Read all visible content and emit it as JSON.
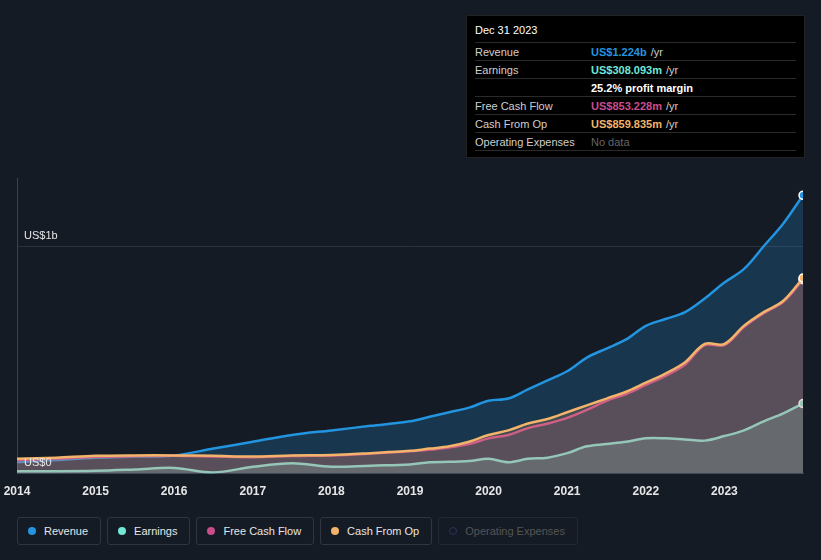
{
  "chart_data": {
    "type": "line",
    "x": [
      2014,
      2014.5,
      2015,
      2015.5,
      2016,
      2016.5,
      2017,
      2017.5,
      2018,
      2018.5,
      2019,
      2019.25,
      2019.5,
      2019.75,
      2020,
      2020.25,
      2020.5,
      2020.75,
      2021,
      2021.25,
      2021.5,
      2021.75,
      2022,
      2022.25,
      2022.5,
      2022.75,
      2023,
      2023.25,
      2023.5,
      2023.75,
      2024
    ],
    "series": [
      {
        "name": "Revenue",
        "color": "#2394df",
        "values": [
          0.05,
          0.06,
          0.07,
          0.075,
          0.08,
          0.11,
          0.14,
          0.17,
          0.19,
          0.21,
          0.23,
          0.25,
          0.27,
          0.29,
          0.32,
          0.33,
          0.37,
          0.41,
          0.45,
          0.51,
          0.55,
          0.59,
          0.65,
          0.68,
          0.71,
          0.77,
          0.84,
          0.9,
          1.0,
          1.1,
          1.224
        ]
      },
      {
        "name": "Earnings",
        "color": "#71e7d6",
        "values": [
          0.01,
          0.01,
          0.012,
          0.018,
          0.025,
          0.005,
          0.03,
          0.045,
          0.03,
          0.035,
          0.04,
          0.05,
          0.052,
          0.055,
          0.065,
          0.05,
          0.065,
          0.07,
          0.09,
          0.12,
          0.13,
          0.14,
          0.155,
          0.155,
          0.15,
          0.145,
          0.165,
          0.19,
          0.23,
          0.265,
          0.308
        ]
      },
      {
        "name": "Free Cash Flow",
        "color": "#c94d8b",
        "values": [
          0.06,
          0.066,
          0.074,
          0.077,
          0.078,
          0.075,
          0.072,
          0.077,
          0.08,
          0.088,
          0.098,
          0.105,
          0.115,
          0.13,
          0.155,
          0.17,
          0.2,
          0.22,
          0.245,
          0.28,
          0.32,
          0.35,
          0.39,
          0.43,
          0.48,
          0.565,
          0.565,
          0.645,
          0.705,
          0.755,
          0.853
        ]
      },
      {
        "name": "Cash From Op",
        "color": "#f2b36a",
        "values": [
          0.065,
          0.07,
          0.078,
          0.08,
          0.08,
          0.078,
          0.075,
          0.08,
          0.082,
          0.09,
          0.1,
          0.11,
          0.12,
          0.14,
          0.17,
          0.19,
          0.22,
          0.24,
          0.27,
          0.3,
          0.33,
          0.36,
          0.4,
          0.44,
          0.49,
          0.57,
          0.57,
          0.65,
          0.71,
          0.76,
          0.86
        ]
      },
      {
        "name": "Operating Expenses",
        "color": "#2f3160",
        "values": [
          null,
          null,
          null,
          null,
          null,
          null,
          null,
          null,
          null,
          null,
          null,
          null,
          null,
          null,
          null,
          null,
          null,
          null,
          null,
          null,
          null,
          null,
          null,
          null,
          null,
          null,
          null,
          null,
          null,
          null,
          null
        ]
      }
    ],
    "xlim": [
      2014,
      2024
    ],
    "xticks": [
      2014,
      2015,
      2016,
      2017,
      2018,
      2019,
      2020,
      2021,
      2022,
      2023
    ],
    "ylim": [
      0,
      1.3
    ],
    "yticks": [
      {
        "value": 0,
        "label": "US$0"
      },
      {
        "value": 1,
        "label": "US$1b"
      }
    ],
    "grid": true,
    "legend": "bottom"
  },
  "info_box": {
    "date": "Dec 31 2023",
    "rows": [
      {
        "label": "Revenue",
        "value": "US$1.224b",
        "unit": "/yr"
      },
      {
        "label": "Earnings",
        "value": "US$308.093m",
        "unit": "/yr"
      },
      {
        "value": "25.2% profit margin"
      },
      {
        "label": "Free Cash Flow",
        "value": "US$853.228m",
        "unit": "/yr"
      },
      {
        "label": "Cash From Op",
        "value": "US$859.835m",
        "unit": "/yr"
      },
      {
        "label": "Operating Expenses",
        "value": "No data"
      }
    ]
  }
}
